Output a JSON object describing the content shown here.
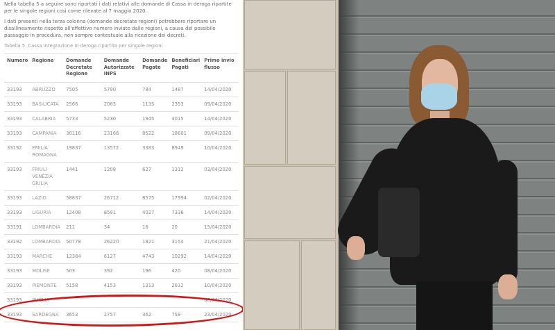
{
  "intro": {
    "p1": "Nella tabella 5 a seguire sono riportati i dati relativi alle domande di Cassa in deroga ripartite per le singole regioni così come rilevate al 7 maggio 2020.",
    "p2": "I dati presenti nella terza colonna (domande decretate regioni) potrebbero riportare un disallineamento rispetto all'effettivo numero inviato dalle regioni, a causa del possibile passaggio in procedura, non sempre contestuale alla ricezione dei decreti.",
    "caption": "Tabella 5. Cassa integrazione in deroga ripartita per singole regioni"
  },
  "table": {
    "headers": [
      "Numero",
      "Regione",
      "Domande Decretate Regione",
      "Domande Autorizzate INPS",
      "Domande Pagate",
      "Beneficiari Pagati",
      "Primo invio flusso"
    ],
    "rows": [
      [
        "33193",
        "ABRUZZO",
        "7505",
        "5790",
        "784",
        "1487",
        "14/04/2020"
      ],
      [
        "33193",
        "BASILICATA",
        "2566",
        "2083",
        "1135",
        "2353",
        "09/04/2020"
      ],
      [
        "33193",
        "CALABRIA",
        "5733",
        "5230",
        "1945",
        "4015",
        "14/04/2020"
      ],
      [
        "33193",
        "CAMPANIA",
        "30116",
        "23166",
        "8522",
        "18601",
        "09/04/2020"
      ],
      [
        "33192",
        "EMILIA ROMAGNA",
        "19837",
        "13572",
        "3383",
        "8949",
        "10/04/2020"
      ],
      [
        "33193",
        "FRIULI VENEZIA GIULIA",
        "1441",
        "1208",
        "627",
        "1312",
        "03/04/2020"
      ],
      [
        "33193",
        "LAZIO",
        "58837",
        "26712",
        "8575",
        "17994",
        "02/04/2020"
      ],
      [
        "33193",
        "LIGURIA",
        "12408",
        "8591",
        "4027",
        "7336",
        "14/04/2020"
      ],
      [
        "33191",
        "LOMBARDIA",
        "211",
        "34",
        "16",
        "20",
        "15/04/2020"
      ],
      [
        "33192",
        "LOMBARDIA",
        "50778",
        "26220",
        "1821",
        "3154",
        "21/04/2020"
      ],
      [
        "33193",
        "MARCHE",
        "12384",
        "6127",
        "4743",
        "10292",
        "14/04/2020"
      ],
      [
        "33193",
        "MOLISE",
        "503",
        "392",
        "196",
        "420",
        "08/04/2020"
      ],
      [
        "33193",
        "PIEMONTE",
        "5158",
        "4153",
        "1313",
        "2612",
        "10/04/2020"
      ],
      [
        "33193",
        "PUGLIA",
        "",
        "",
        "",
        "",
        "08/04/2020"
      ],
      [
        "33193",
        "SARDEGNA",
        "3653",
        "2757",
        "362",
        "759",
        "23/04/2020"
      ]
    ]
  },
  "highlight_color": "#d01818"
}
